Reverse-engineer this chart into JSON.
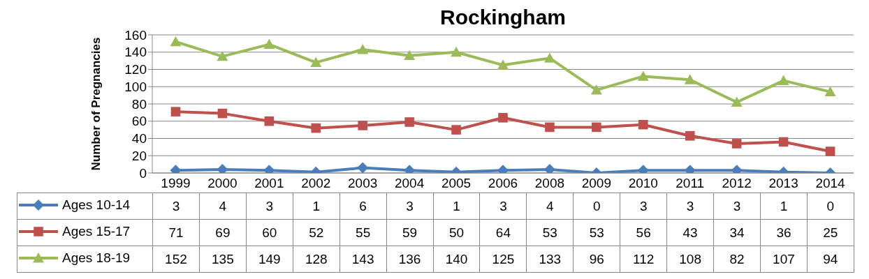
{
  "chart_data": {
    "type": "line",
    "title": "Rockingham",
    "ylabel": "Number of Pregnancies",
    "categories": [
      "1999",
      "2000",
      "2001",
      "2002",
      "2003",
      "2004",
      "2005",
      "2006",
      "2008",
      "2009",
      "2010",
      "2011",
      "2012",
      "2013",
      "2014"
    ],
    "series": [
      {
        "name": "Ages 10-14",
        "color": "#4a7ebb",
        "marker": "diamond",
        "values": [
          3,
          4,
          3,
          1,
          6,
          3,
          1,
          3,
          4,
          0,
          3,
          3,
          3,
          1,
          0
        ]
      },
      {
        "name": "Ages 15-17",
        "color": "#c0504d",
        "marker": "square",
        "values": [
          71,
          69,
          60,
          52,
          55,
          59,
          50,
          64,
          53,
          53,
          56,
          43,
          34,
          36,
          25
        ]
      },
      {
        "name": "Ages 18-19",
        "color": "#9bbb59",
        "marker": "triangle",
        "values": [
          152,
          135,
          149,
          128,
          143,
          136,
          140,
          125,
          133,
          96,
          112,
          108,
          82,
          107,
          94
        ]
      }
    ],
    "ylim": [
      0,
      160
    ],
    "yticks": [
      0,
      20,
      40,
      60,
      80,
      100,
      120,
      140,
      160
    ],
    "grid": "y",
    "legend": "bottom",
    "data_labels": true
  }
}
